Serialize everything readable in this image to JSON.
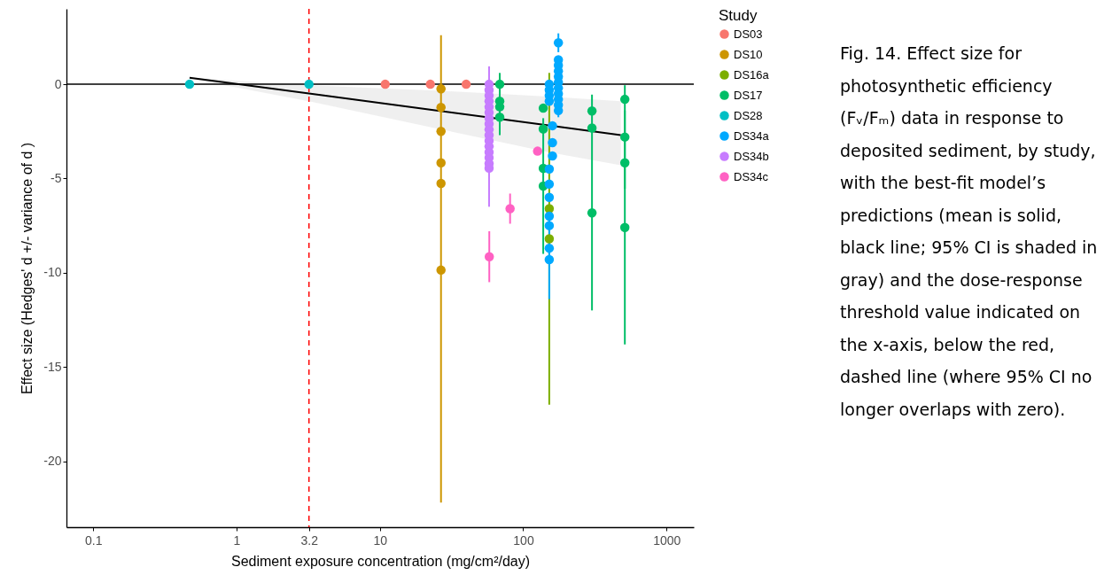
{
  "chart_data": {
    "type": "scatter",
    "xlabel": "Sediment exposure concentration (mg/cm²/day)",
    "ylabel": "Effect size (Hedges' d +/- variance of d )",
    "legend_title": "Study",
    "legend": "right",
    "log": "x",
    "grid": false,
    "marker": "circle",
    "xlim": [
      0.065,
      1550
    ],
    "xticks": [
      0.1,
      1,
      3.2,
      10,
      100,
      1000
    ],
    "ylim": [
      -23.5,
      4
    ],
    "yticks": [
      0,
      -5,
      -10,
      -15,
      -20
    ],
    "ref_lines": [
      {
        "axis": "y",
        "value": 0,
        "color": "#000000",
        "line_style": "solid"
      },
      {
        "axis": "x",
        "value": 3.2,
        "color": "#ff0000",
        "line_style": "dashed"
      }
    ],
    "series": [
      {
        "name": "DS03",
        "color": "#f8766d",
        "x": [
          10.9,
          22.5,
          40
        ],
        "values": [
          0,
          0,
          0
        ]
      },
      {
        "name": "DS10",
        "color": "#cd9600",
        "x": [
          26.7,
          26.7,
          26.7,
          26.7,
          26.7,
          26.7
        ],
        "values": [
          -0.24,
          -1.23,
          -2.5,
          -4.17,
          -5.26,
          -9.86
        ],
        "errors": [
          null,
          null,
          null,
          null,
          null,
          [
            -22.2,
            2.6
          ]
        ]
      },
      {
        "name": "DS16a",
        "color": "#7cae00",
        "x": [
          152,
          152
        ],
        "values": [
          -6.6,
          -8.2
        ],
        "errors": [
          null,
          [
            -17,
            0.6
          ]
        ]
      },
      {
        "name": "DS17",
        "color": "#00be67",
        "x": [
          68.6,
          68.6,
          68.6,
          68.6,
          138,
          138,
          138,
          138,
          302,
          302,
          302,
          512,
          512,
          512,
          512
        ],
        "values": [
          0,
          -0.9,
          -1.2,
          -1.75,
          -1.27,
          -2.37,
          -4.46,
          -5.4,
          -1.42,
          -2.32,
          -6.82,
          -0.8,
          -2.8,
          -4.17,
          -7.6
        ],
        "errors": [
          null,
          null,
          [
            -2.7,
            0.6
          ],
          null,
          null,
          null,
          null,
          [
            -9.0,
            -1.8
          ],
          [
            -1.42,
            -0.55
          ],
          null,
          [
            -12.0,
            -1.6
          ],
          null,
          [
            -5.55,
            -0.05
          ],
          null,
          [
            -13.8,
            -1.4
          ]
        ]
      },
      {
        "name": "DS28",
        "color": "#00bfc4",
        "x": [
          0.47,
          3.2
        ],
        "values": [
          0,
          0
        ]
      },
      {
        "name": "DS34a",
        "color": "#00a9ff",
        "x": [
          176,
          176,
          176,
          176,
          176,
          176,
          176,
          176,
          176,
          176,
          176,
          152,
          152,
          152,
          152,
          160,
          160,
          160,
          152,
          152,
          152,
          152,
          152,
          152,
          152
        ],
        "values": [
          2.2,
          1.3,
          1.0,
          0.7,
          0.4,
          0.1,
          -0.2,
          -0.5,
          -0.8,
          -1.1,
          -1.4,
          0,
          -0.3,
          -0.6,
          -0.9,
          -2.2,
          -3.1,
          -3.8,
          -4.5,
          -5.3,
          -6.0,
          -7.0,
          -7.5,
          -8.7,
          -9.3
        ],
        "errors": [
          0.5,
          null,
          null,
          null,
          null,
          null,
          null,
          null,
          null,
          null,
          0.35,
          null,
          null,
          null,
          null,
          null,
          null,
          null,
          null,
          null,
          null,
          null,
          null,
          null,
          2.1
        ]
      },
      {
        "name": "DS34b",
        "color": "#c77cff",
        "x": [
          57.8,
          57.8,
          57.8,
          57.8,
          57.8,
          57.8,
          57.8,
          57.8,
          57.8,
          57.8,
          57.8,
          57.8,
          57.8,
          57.8,
          57.8,
          57.8
        ],
        "values": [
          0,
          -0.3,
          -0.6,
          -0.9,
          -1.2,
          -1.5,
          -1.8,
          -2.1,
          -2.4,
          -2.7,
          -3.0,
          -3.3,
          -3.6,
          -3.9,
          -4.2,
          -4.45
        ],
        "errors": [
          0.95,
          null,
          null,
          null,
          null,
          null,
          null,
          null,
          null,
          null,
          null,
          null,
          null,
          null,
          null,
          [
            -6.5,
            -4.45
          ]
        ]
      },
      {
        "name": "DS34c",
        "color": "#ff61c3",
        "x": [
          126,
          81,
          58
        ],
        "values": [
          -3.55,
          -6.6,
          -9.15
        ],
        "errors": [
          null,
          0.8,
          1.35
        ]
      },
      {
        "type": "line",
        "marker": "none",
        "color": "#000000",
        "x": [
          0.47,
          3.2,
          27,
          150,
          480
        ],
        "values": [
          0.35,
          -0.49,
          -1.43,
          -2.18,
          -2.7
        ],
        "lower": [
          0.3,
          -0.9,
          -2.4,
          -3.6,
          -4.3
        ],
        "upper": [
          0.35,
          -0.05,
          -0.35,
          -0.65,
          -0.9
        ]
      }
    ],
    "annotations": [
      "Fig. 14. Effect size for photosynthetic efficiency (Fᵥ/Fₘ) data in response to deposited sediment, by study, with the best-fit model’s predictions (mean is solid, black line; 95% CI is shaded in gray) and the dose-response threshold value indicated on the x-axis, below the red, dashed line (where 95% CI no longer overlaps with zero)."
    ]
  }
}
